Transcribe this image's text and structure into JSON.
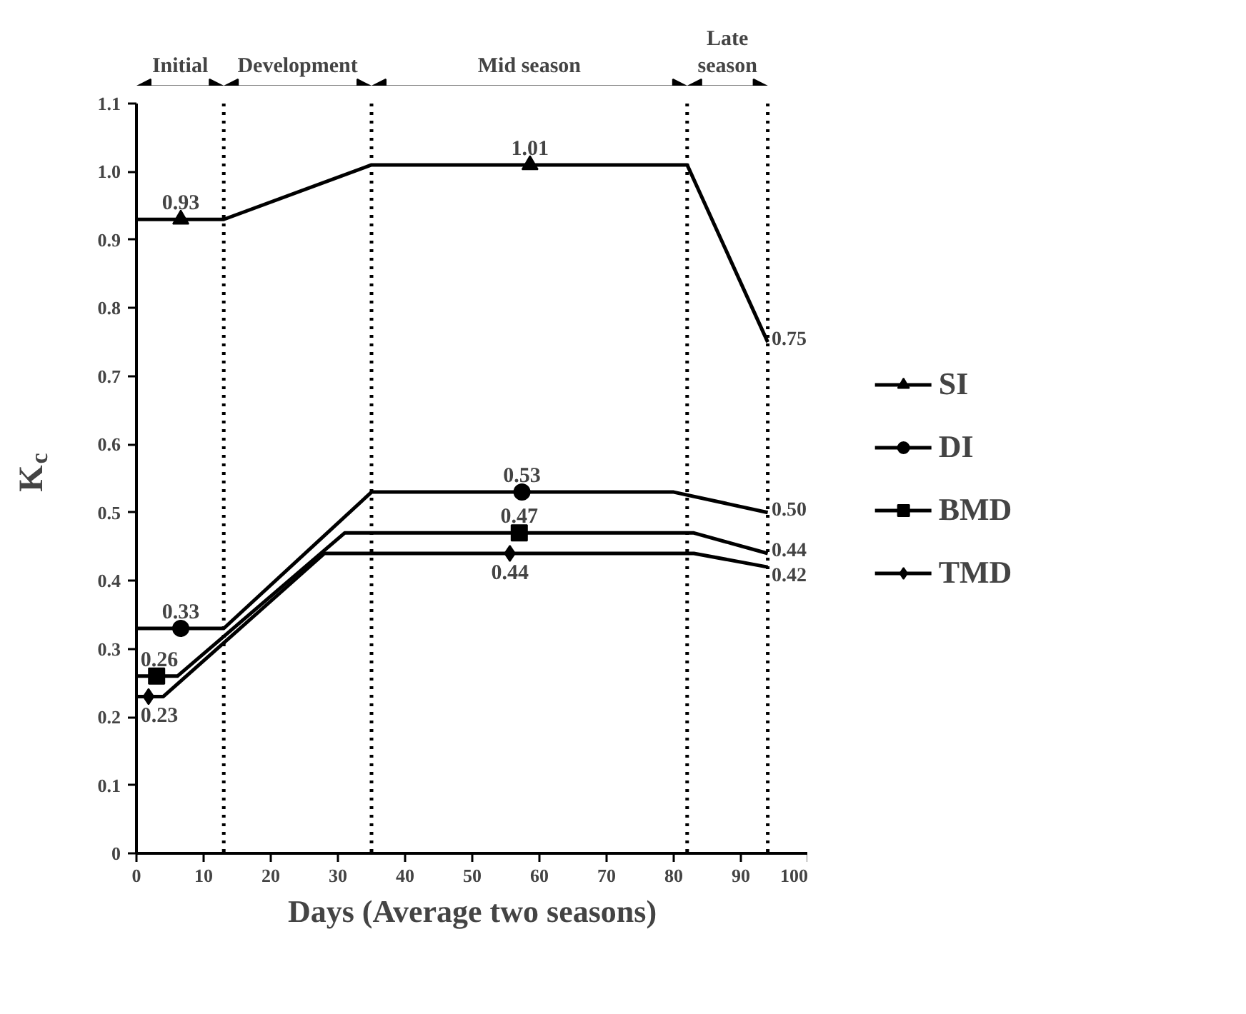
{
  "chart_data": {
    "type": "line",
    "xlabel": "Days (Average two seasons)",
    "ylabel": "K$_{c}$",
    "xlim": [
      0,
      100
    ],
    "xticks": [
      0,
      10,
      20,
      30,
      40,
      50,
      60,
      70,
      80,
      90,
      100
    ],
    "ylim": [
      0,
      1.1
    ],
    "yticks": [
      0,
      0.1,
      0.2,
      0.3,
      0.4,
      0.5,
      0.6,
      0.7,
      0.8,
      0.9,
      {
        "value": 1,
        "label": "1.0"
      },
      1.1
    ],
    "grid": false,
    "legend": "right",
    "line_style": "solid",
    "series": [
      {
        "color": "#000000",
        "marker": "none",
        "x": [
          0,
          13,
          35,
          82,
          94
        ],
        "values": [
          0.93,
          0.93,
          1.01,
          1.01,
          0.75
        ],
        "value_labels": [
          null,
          null,
          null,
          null,
          "0.75"
        ]
      },
      {
        "type": "scatter",
        "name": "SI",
        "color": "#000000",
        "marker": "triangle",
        "x": [
          6.6,
          58.6
        ],
        "values": [
          0.93,
          1.01
        ],
        "value_labels": [
          "0.93",
          "1.01"
        ]
      },
      {
        "color": "#000000",
        "marker": "none",
        "x": [
          0,
          13,
          35,
          80,
          94
        ],
        "values": [
          0.33,
          0.33,
          0.53,
          0.53,
          0.5
        ],
        "value_labels": [
          null,
          null,
          null,
          null,
          "0.50"
        ]
      },
      {
        "type": "scatter",
        "name": "DI",
        "color": "#000000",
        "marker": "circle",
        "x": [
          6.6,
          57.4
        ],
        "values": [
          0.33,
          0.53
        ],
        "value_labels": [
          "0.33",
          "0.53"
        ]
      },
      {
        "color": "#000000",
        "marker": "none",
        "x": [
          0,
          6.1,
          31,
          83,
          94
        ],
        "values": [
          0.26,
          0.26,
          0.47,
          0.47,
          0.44
        ],
        "value_labels": [
          null,
          null,
          null,
          null,
          "0.44"
        ]
      },
      {
        "type": "scatter",
        "name": "BMD",
        "color": "#000000",
        "marker": "square",
        "x": [
          3,
          57
        ],
        "values": [
          0.26,
          0.47
        ],
        "value_labels": [
          "0.26",
          "0.47"
        ]
      },
      {
        "color": "#000000",
        "marker": "none",
        "x": [
          0,
          4,
          28,
          83,
          94
        ],
        "values": [
          0.23,
          0.23,
          0.44,
          0.44,
          0.42
        ],
        "value_labels": [
          null,
          null,
          null,
          null,
          "0.42"
        ]
      },
      {
        "type": "scatter",
        "name": "TMD",
        "color": "#000000",
        "marker": "diamond",
        "x": [
          1.8,
          55.6
        ],
        "values": [
          0.23,
          0.44
        ],
        "value_labels": [
          "0.23",
          "0.44"
        ]
      }
    ],
    "ref_lines": [
      {
        "axis": "x",
        "value": 13,
        "line_style": "dotted"
      },
      {
        "axis": "x",
        "value": 35,
        "line_style": "dotted"
      },
      {
        "axis": "x",
        "value": 82,
        "line_style": "dotted"
      },
      {
        "axis": "x",
        "value": 94,
        "line_style": "dotted"
      }
    ],
    "annotations": [
      "Initial",
      "Development",
      "Mid season",
      "Late\nseason"
    ]
  }
}
